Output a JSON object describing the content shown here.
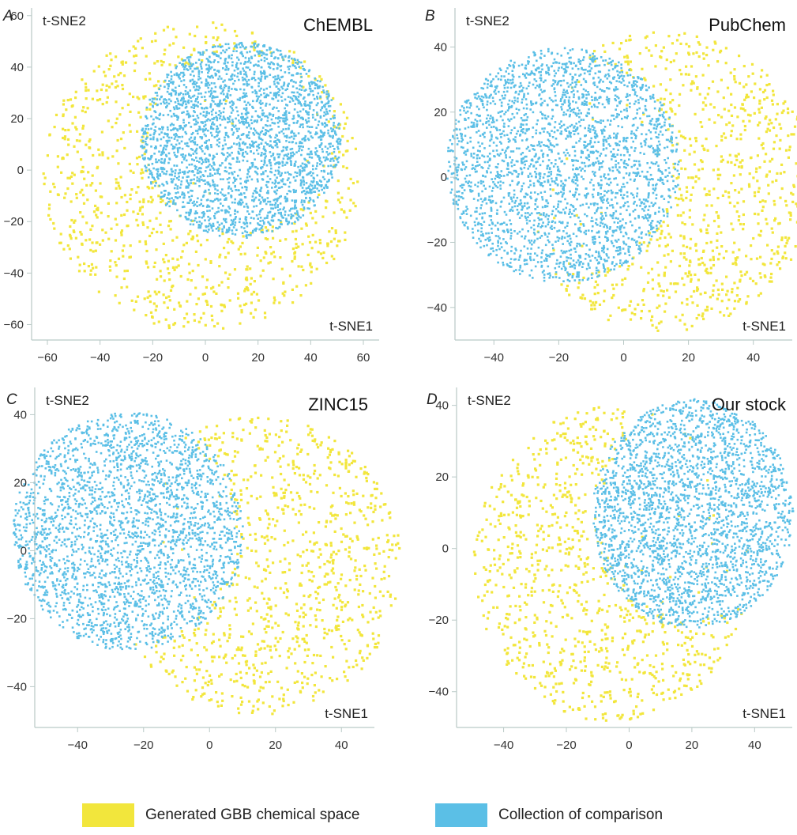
{
  "colors": {
    "generated": "#f2e63c",
    "comparison": "#5bbfe6"
  },
  "legend": [
    {
      "key": "generated",
      "label": "Generated GBB chemical space"
    },
    {
      "key": "comparison",
      "label": "Collection of comparison"
    }
  ],
  "chart_data": [
    {
      "type": "scatter",
      "panel": "A",
      "title": "ChEMBL",
      "xlabel": "t-SNE1",
      "ylabel": "t-SNE2",
      "xlim": [
        -66,
        66
      ],
      "ylim": [
        -66,
        63
      ],
      "xticks": [
        -60,
        -40,
        -20,
        0,
        20,
        40,
        60
      ],
      "yticks": [
        60,
        40,
        20,
        0,
        -20,
        -40,
        -60
      ],
      "xtick_labels": [
        "−60",
        "−40",
        "−20",
        "0",
        "20",
        "40",
        "60"
      ],
      "ytick_labels": [
        "60",
        "40",
        "20",
        "0",
        "−20",
        "−40",
        "−60"
      ],
      "series": [
        {
          "name": "Generated GBB chemical space",
          "key": "generated",
          "region": {
            "shape": "disc",
            "cx": -2,
            "cy": -2,
            "r": 60
          },
          "n_points": 1500
        },
        {
          "name": "Collection of comparison",
          "key": "comparison",
          "region": {
            "shape": "disc",
            "cx": 13,
            "cy": 12,
            "r": 38
          },
          "n_points": 2600
        }
      ]
    },
    {
      "type": "scatter",
      "panel": "B",
      "title": "PubChem",
      "xlabel": "t-SNE1",
      "ylabel": "t-SNE2",
      "xlim": [
        -52,
        52
      ],
      "ylim": [
        -50,
        52
      ],
      "xticks": [
        -40,
        -20,
        0,
        20,
        40
      ],
      "yticks": [
        40,
        20,
        0,
        -20,
        -40
      ],
      "xtick_labels": [
        "−40",
        "−20",
        "0",
        "20",
        "40"
      ],
      "ytick_labels": [
        "40",
        "20",
        "0",
        "−20",
        "−40"
      ],
      "series": [
        {
          "name": "Generated GBB chemical space",
          "key": "generated",
          "region": {
            "shape": "disc",
            "cx": 12,
            "cy": -1,
            "r": 46
          },
          "n_points": 1500
        },
        {
          "name": "Collection of comparison",
          "key": "comparison",
          "region": {
            "shape": "disc",
            "cx": -19,
            "cy": 4,
            "r": 36
          },
          "n_points": 2600
        }
      ]
    },
    {
      "type": "scatter",
      "panel": "C",
      "title": "ZINC15",
      "xlabel": "t-SNE1",
      "ylabel": "t-SNE2",
      "xlim": [
        -53,
        50
      ],
      "ylim": [
        -52,
        48
      ],
      "xticks": [
        -40,
        -20,
        0,
        20,
        40
      ],
      "yticks": [
        40,
        20,
        0,
        -20,
        -40
      ],
      "xtick_labels": [
        "−40",
        "−20",
        "0",
        "20",
        "40"
      ],
      "ytick_labels": [
        "40",
        "20",
        "0",
        "−20",
        "−40"
      ],
      "series": [
        {
          "name": "Generated GBB chemical space",
          "key": "generated",
          "region": {
            "shape": "disc",
            "cx": 14,
            "cy": -4,
            "r": 44
          },
          "n_points": 1500
        },
        {
          "name": "Collection of comparison",
          "key": "comparison",
          "region": {
            "shape": "disc",
            "cx": -25,
            "cy": 6,
            "r": 35
          },
          "n_points": 2600
        }
      ]
    },
    {
      "type": "scatter",
      "panel": "D",
      "title": "Our stock",
      "xlabel": "t-SNE1",
      "ylabel": "t-SNE2",
      "xlim": [
        -55,
        52
      ],
      "ylim": [
        -50,
        45
      ],
      "xticks": [
        -40,
        -20,
        0,
        20,
        40
      ],
      "yticks": [
        40,
        20,
        0,
        -20,
        -40
      ],
      "xtick_labels": [
        "−40",
        "−20",
        "0",
        "20",
        "40"
      ],
      "ytick_labels": [
        "40",
        "20",
        "0",
        "−20",
        "−40"
      ],
      "series": [
        {
          "name": "Generated GBB chemical space",
          "key": "generated",
          "region": {
            "shape": "disc",
            "cx": -6,
            "cy": -4,
            "r": 44
          },
          "n_points": 1500
        },
        {
          "name": "Collection of comparison",
          "key": "comparison",
          "region": {
            "shape": "disc",
            "cx": 20,
            "cy": 10,
            "r": 32
          },
          "n_points": 2600
        }
      ]
    }
  ]
}
